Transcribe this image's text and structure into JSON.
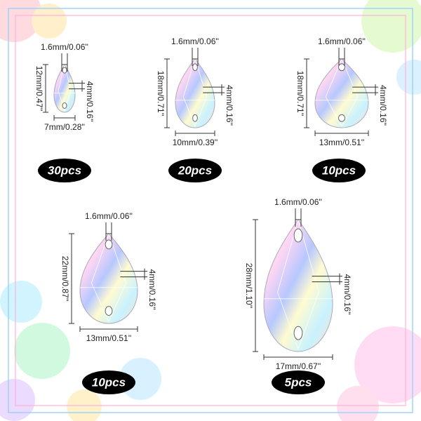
{
  "items": [
    {
      "hole": "1.6mm/0.06''",
      "height": "12mm/0.47''",
      "depth": "4mm/0.16''",
      "width": "7mm/0.28''",
      "count": "30pcs"
    },
    {
      "hole": "1.6mm/0.06''",
      "height": "18mm/0.71''",
      "depth": "4mm/0.16''",
      "width": "10mm/0.39''",
      "count": "20pcs"
    },
    {
      "hole": "1.6mm/0.06''",
      "height": "18mm/0.71''",
      "depth": "4mm/0.16''",
      "width": "13mm/0.51''",
      "count": "10pcs"
    },
    {
      "hole": "1.6mm/0.06''",
      "height": "22mm/0.87''",
      "depth": "4mm/0.16''",
      "width": "13mm/0.51''",
      "count": "10pcs"
    },
    {
      "hole": "1.6mm/0.06''",
      "height": "28mm/1.10''",
      "depth": "4mm/0.16''",
      "width": "17mm/0.67''",
      "count": "5pcs"
    }
  ]
}
